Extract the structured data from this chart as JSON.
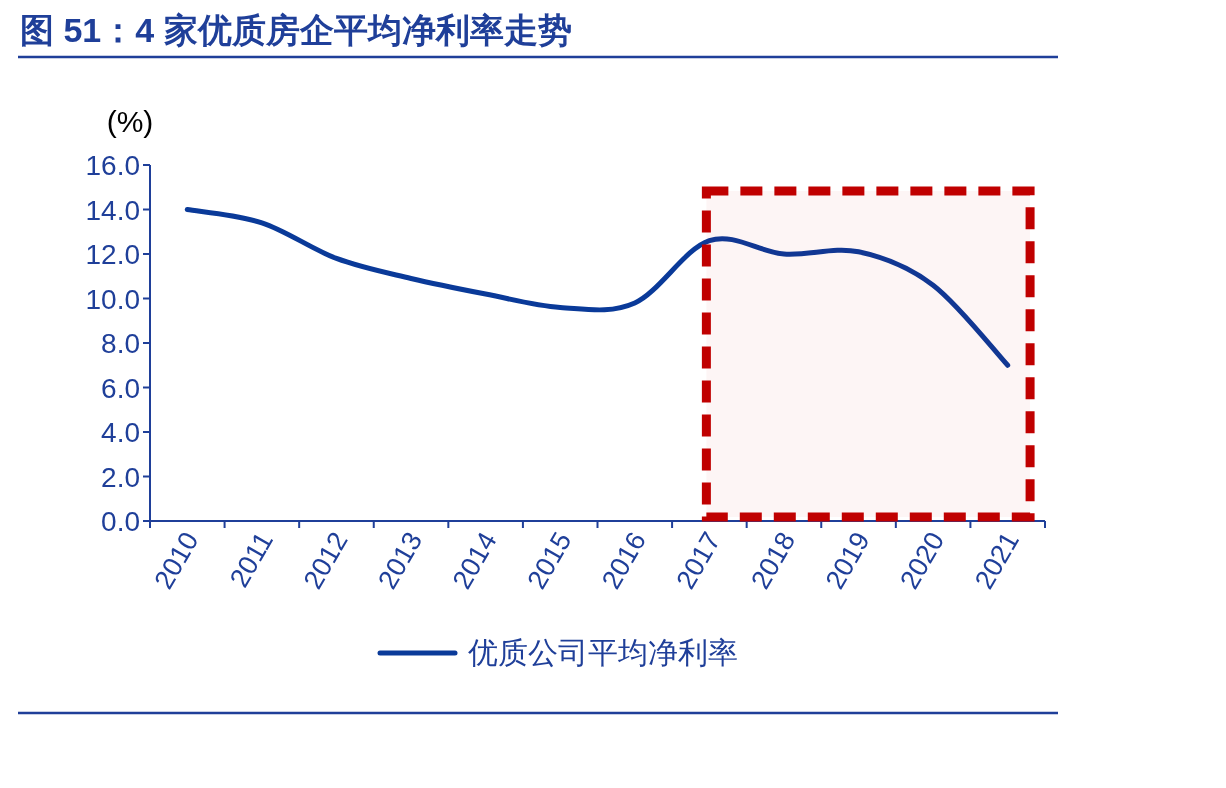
{
  "chart_data": {
    "type": "line",
    "title": "图 51：4 家优质房企平均净利率走势",
    "ylabel": "(%)",
    "categories": [
      "2010",
      "2011",
      "2012",
      "2013",
      "2014",
      "2015",
      "2016",
      "2017",
      "2018",
      "2019",
      "2020",
      "2021"
    ],
    "series": [
      {
        "name": "优质公司平均净利率",
        "color": "#0a3a99",
        "values": [
          14.0,
          13.4,
          11.8,
          10.9,
          10.2,
          9.6,
          9.8,
          12.6,
          12.0,
          12.1,
          10.6,
          7.0
        ]
      }
    ],
    "ylim": [
      0,
      16
    ],
    "yticks": [
      {
        "value": 0,
        "label": "0.0"
      },
      {
        "value": 2,
        "label": "2.0"
      },
      {
        "value": 4,
        "label": "4.0"
      },
      {
        "value": 6,
        "label": "6.0"
      },
      {
        "value": 8,
        "label": "8.0"
      },
      {
        "value": 10,
        "label": "10.0"
      },
      {
        "value": 12,
        "label": "12.0"
      },
      {
        "value": 14,
        "label": "14.0"
      },
      {
        "value": 16,
        "label": "16.0"
      }
    ],
    "bands": [
      {
        "axis": "x",
        "from": "2017",
        "to": "2021",
        "color": "#c00000"
      }
    ],
    "grid": false,
    "legend": "bottom",
    "marker": "none",
    "line_style": "solid"
  }
}
